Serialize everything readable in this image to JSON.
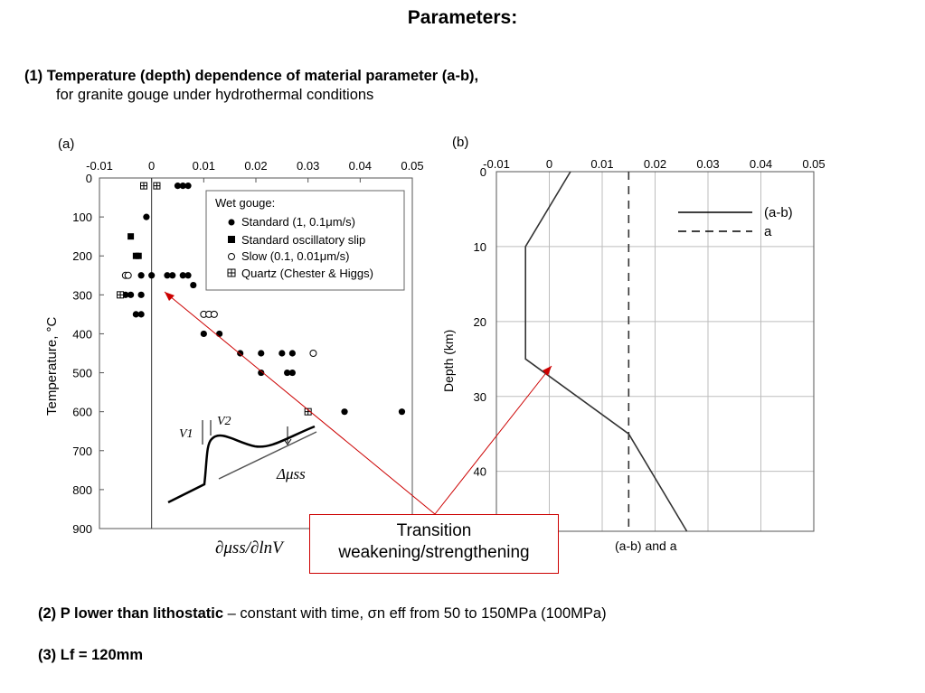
{
  "slide": {
    "title": "Parameters:",
    "heading1_bold": "(1) Temperature (depth) dependence of material parameter (a-b),",
    "heading1_sub": "for granite gouge under hydrothermal conditions",
    "item2_bold": "(2) P lower than lithostatic",
    "item2_rest": " – constant with time, σn eff from 50 to 150MPa (100MPa)",
    "item3": "(3) Lf = 120mm",
    "callout_line1": "Transition",
    "callout_line2": "weakening/strengthening",
    "colors": {
      "annotation": "#cc0000",
      "grid": "#bdbdbd"
    }
  },
  "chart_data": [
    {
      "panel_label": "(a)",
      "type": "scatter",
      "xlabel": "∂μss/∂lnV",
      "ylabel": "Temperature, °C",
      "xlim": [
        -0.01,
        0.05
      ],
      "ylim": [
        900,
        0
      ],
      "x_ticks": [
        "-0.01",
        "0",
        "0.01",
        "0.02",
        "0.03",
        "0.04",
        "0.05"
      ],
      "y_ticks": [
        "0",
        "100",
        "200",
        "300",
        "400",
        "500",
        "600",
        "700",
        "800",
        "900"
      ],
      "legend_title": "Wet gouge:",
      "legend_position": "top-right",
      "series": [
        {
          "name": "Standard (1, 0.1μm/s)",
          "marker": "filled-circle",
          "points": [
            [
              0.005,
              20
            ],
            [
              0.006,
              20
            ],
            [
              0.007,
              20
            ],
            [
              -0.001,
              100
            ],
            [
              -0.002,
              250
            ],
            [
              0,
              250
            ],
            [
              0.003,
              250
            ],
            [
              0.004,
              250
            ],
            [
              0.006,
              250
            ],
            [
              0.007,
              250
            ],
            [
              0.008,
              275
            ],
            [
              -0.004,
              300
            ],
            [
              -0.005,
              300
            ],
            [
              -0.002,
              300
            ],
            [
              -0.003,
              350
            ],
            [
              -0.002,
              350
            ],
            [
              0.01,
              400
            ],
            [
              0.013,
              400
            ],
            [
              0.017,
              450
            ],
            [
              0.021,
              450
            ],
            [
              0.025,
              450
            ],
            [
              0.027,
              450
            ],
            [
              0.021,
              500
            ],
            [
              0.026,
              500
            ],
            [
              0.027,
              500
            ],
            [
              0.037,
              600
            ],
            [
              0.048,
              600
            ]
          ]
        },
        {
          "name": "Standard oscillatory slip",
          "marker": "filled-square",
          "points": [
            [
              -0.004,
              150
            ],
            [
              -0.003,
              200
            ],
            [
              -0.0025,
              200
            ]
          ]
        },
        {
          "name": "Slow (0.1, 0.01μm/s)",
          "marker": "open-circle",
          "points": [
            [
              -0.005,
              250
            ],
            [
              -0.0045,
              250
            ],
            [
              0.01,
              350
            ],
            [
              0.011,
              350
            ],
            [
              0.012,
              350
            ],
            [
              0.031,
              450
            ]
          ]
        },
        {
          "name": "Quartz (Chester & Higgs)",
          "marker": "boxed-plus",
          "points": [
            [
              -0.0015,
              20
            ],
            [
              0.001,
              20
            ],
            [
              -0.006,
              300
            ],
            [
              0.03,
              600
            ]
          ]
        }
      ],
      "inset": {
        "label_v1": "V1",
        "label_v2": "V2",
        "label_delta": "Δμss"
      }
    },
    {
      "panel_label": "(b)",
      "type": "line",
      "xlabel": "(a-b) and a",
      "ylabel": "Depth (km)",
      "xlim": [
        -0.01,
        0.05
      ],
      "ylim": [
        48,
        0
      ],
      "x_ticks": [
        "-0.01",
        "0",
        "0.01",
        "0.02",
        "0.03",
        "0.04",
        "0.05"
      ],
      "y_ticks": [
        "0",
        "10",
        "20",
        "30",
        "40"
      ],
      "grid": true,
      "legend_position": "top-right",
      "series": [
        {
          "name": "(a-b)",
          "style": "solid",
          "x": [
            0.004,
            -0.0045,
            -0.0045,
            0.015,
            0.026
          ],
          "y": [
            0,
            10,
            25,
            35,
            48
          ]
        },
        {
          "name": "a",
          "style": "dashed",
          "x": [
            0.015,
            0.015
          ],
          "y": [
            0,
            48
          ]
        }
      ]
    }
  ]
}
